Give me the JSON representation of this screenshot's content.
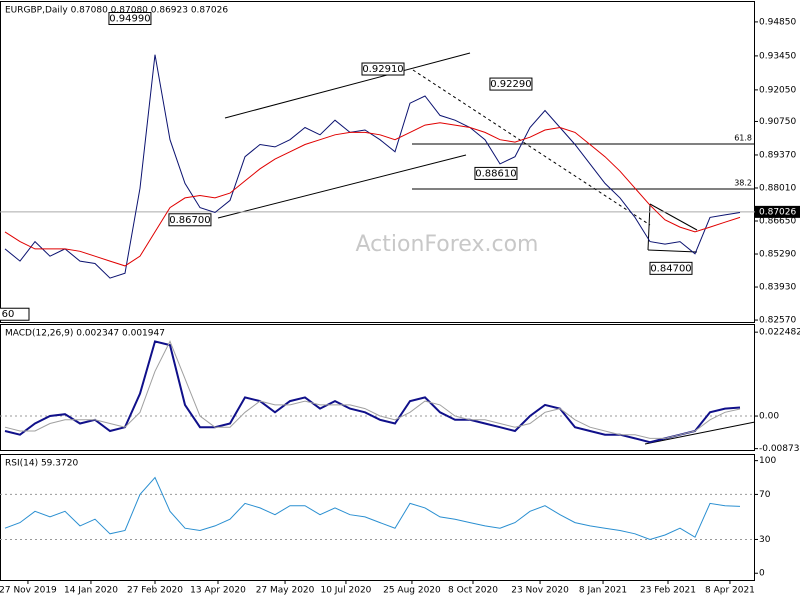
{
  "chart_data": [
    {
      "type": "line",
      "title": "EURGBP,Daily  0.87080 0.87080 0.86923 0.87026",
      "watermark": "ActionForex.com",
      "ylim": [
        0.8249,
        0.9567
      ],
      "yticks": [
        {
          "value": 0.9485,
          "label": "0.94850"
        },
        {
          "value": 0.9345,
          "label": "0.93450"
        },
        {
          "value": 0.9205,
          "label": "0.92050"
        },
        {
          "value": 0.9075,
          "label": "0.90750"
        },
        {
          "value": 0.8937,
          "label": "0.89370"
        },
        {
          "value": 0.8801,
          "label": "0.88010"
        },
        {
          "value": 0.8665,
          "label": "0.86650"
        },
        {
          "value": 0.8529,
          "label": "0.85290"
        },
        {
          "value": 0.8393,
          "label": "0.83930"
        },
        {
          "value": 0.8257,
          "label": "0.82570"
        }
      ],
      "last": 0.87026,
      "series": [
        {
          "name": "EURGBP",
          "color": "#0b1270",
          "values": [
            0.855,
            0.85,
            0.858,
            0.852,
            0.855,
            0.85,
            0.849,
            0.843,
            0.845,
            0.88,
            0.935,
            0.9,
            0.882,
            0.872,
            0.87,
            0.875,
            0.893,
            0.898,
            0.897,
            0.9,
            0.905,
            0.902,
            0.908,
            0.903,
            0.904,
            0.9,
            0.895,
            0.915,
            0.918,
            0.91,
            0.908,
            0.905,
            0.9,
            0.89,
            0.893,
            0.905,
            0.912,
            0.905,
            0.898,
            0.89,
            0.882,
            0.876,
            0.868,
            0.858,
            0.857,
            0.858,
            0.853,
            0.868,
            0.869,
            0.87
          ]
        },
        {
          "name": "SMA",
          "color": "#e00000",
          "values": [
            0.862,
            0.858,
            0.855,
            0.855,
            0.855,
            0.854,
            0.852,
            0.85,
            0.848,
            0.852,
            0.862,
            0.872,
            0.876,
            0.877,
            0.876,
            0.878,
            0.883,
            0.888,
            0.892,
            0.895,
            0.898,
            0.9,
            0.902,
            0.903,
            0.903,
            0.902,
            0.9,
            0.903,
            0.906,
            0.907,
            0.906,
            0.905,
            0.903,
            0.9,
            0.899,
            0.901,
            0.904,
            0.905,
            0.903,
            0.898,
            0.893,
            0.887,
            0.88,
            0.873,
            0.867,
            0.864,
            0.862,
            0.864,
            0.866,
            0.868
          ]
        }
      ],
      "annotations": [
        {
          "label": "0.94990",
          "x": 8.33,
          "y": 0.9499
        },
        {
          "label": "0.92910",
          "x": 25.2,
          "y": 0.9291
        },
        {
          "label": "0.92290",
          "x": 33.73,
          "y": 0.9229
        },
        {
          "label": "0.88610",
          "x": 32.73,
          "y": 0.8861
        },
        {
          "label": "0.86700",
          "x": 12.33,
          "y": 0.867
        },
        {
          "label": "0.84700",
          "x": 44.4,
          "y": 0.847
        },
        {
          "label": "60",
          "x": 0.2,
          "y": 0.8281
        }
      ],
      "fib_levels": [
        {
          "ratio": 61.8,
          "price": 0.8982
        },
        {
          "ratio": 38.2,
          "price": 0.8797
        }
      ]
    },
    {
      "type": "line",
      "title": "MACD(12,26,9) 0.002347 0.001947",
      "ylim": [
        -0.0091,
        0.0244
      ],
      "yticks": [
        0.022482,
        {
          "value": 0,
          "label": "0.00"
        },
        -0.008736
      ],
      "levels": [
        0
      ],
      "series": [
        {
          "name": "MACD",
          "color": "#10108a",
          "values": [
            -0.004,
            -0.005,
            -0.002,
            0.0,
            0.0005,
            -0.002,
            -0.001,
            -0.004,
            -0.003,
            0.006,
            0.02,
            0.019,
            0.003,
            -0.003,
            -0.003,
            -0.002,
            0.005,
            0.004,
            0.001,
            0.004,
            0.005,
            0.002,
            0.004,
            0.002,
            0.001,
            -0.001,
            -0.002,
            0.004,
            0.005,
            0.001,
            -0.001,
            -0.001,
            -0.002,
            -0.003,
            -0.004,
            0.0,
            0.003,
            0.002,
            -0.003,
            -0.004,
            -0.005,
            -0.005,
            -0.006,
            -0.007,
            -0.006,
            -0.005,
            -0.004,
            0.001,
            0.002,
            0.0023
          ]
        },
        {
          "name": "Signal",
          "color": "#a0a0a0",
          "values": [
            -0.003,
            -0.004,
            -0.004,
            -0.002,
            -0.001,
            -0.001,
            -0.001,
            -0.002,
            -0.003,
            0.001,
            0.012,
            0.02,
            0.01,
            0.0,
            -0.003,
            -0.003,
            0.001,
            0.004,
            0.003,
            0.003,
            0.004,
            0.003,
            0.003,
            0.003,
            0.002,
            0.0,
            -0.001,
            0.001,
            0.004,
            0.003,
            0.0,
            -0.001,
            -0.001,
            -0.002,
            -0.003,
            -0.002,
            0.001,
            0.002,
            -0.001,
            -0.003,
            -0.004,
            -0.005,
            -0.005,
            -0.006,
            -0.006,
            -0.005,
            -0.004,
            -0.001,
            0.001,
            0.0019
          ]
        }
      ]
    },
    {
      "type": "line",
      "title": "RSI(14) 59.3720",
      "ylim": [
        -6,
        105
      ],
      "yticks": [
        100,
        70,
        30,
        0
      ],
      "levels": [
        70,
        30
      ],
      "xlim": [
        -0.333,
        50
      ],
      "xticks": [
        {
          "value": 1.53,
          "label": "27 Nov 2019"
        },
        {
          "value": 5.73,
          "label": "14 Jan 2020"
        },
        {
          "value": 10,
          "label": "27 Feb 2020"
        },
        {
          "value": 14.2,
          "label": "13 Apr 2020"
        },
        {
          "value": 18.67,
          "label": "27 May 2020"
        },
        {
          "value": 22.73,
          "label": "10 Jul 2020"
        },
        {
          "value": 27.13,
          "label": "25 Aug 2020"
        },
        {
          "value": 31.2,
          "label": "8 Oct 2020"
        },
        {
          "value": 35.67,
          "label": "23 Nov 2020"
        },
        {
          "value": 39.87,
          "label": "8 Jan 2021"
        },
        {
          "value": 44.2,
          "label": "23 Feb 2021"
        },
        {
          "value": 48.33,
          "label": "8 Apr 2021"
        }
      ],
      "series": [
        {
          "name": "RSI",
          "color": "#2a8fd1",
          "values": [
            40,
            45,
            55,
            50,
            55,
            42,
            48,
            35,
            38,
            70,
            85,
            55,
            40,
            38,
            42,
            48,
            62,
            58,
            52,
            60,
            60,
            52,
            58,
            52,
            50,
            45,
            40,
            62,
            58,
            50,
            48,
            45,
            42,
            40,
            45,
            55,
            60,
            52,
            45,
            42,
            40,
            38,
            35,
            30,
            34,
            40,
            32,
            62,
            60,
            59.37
          ]
        }
      ]
    }
  ]
}
